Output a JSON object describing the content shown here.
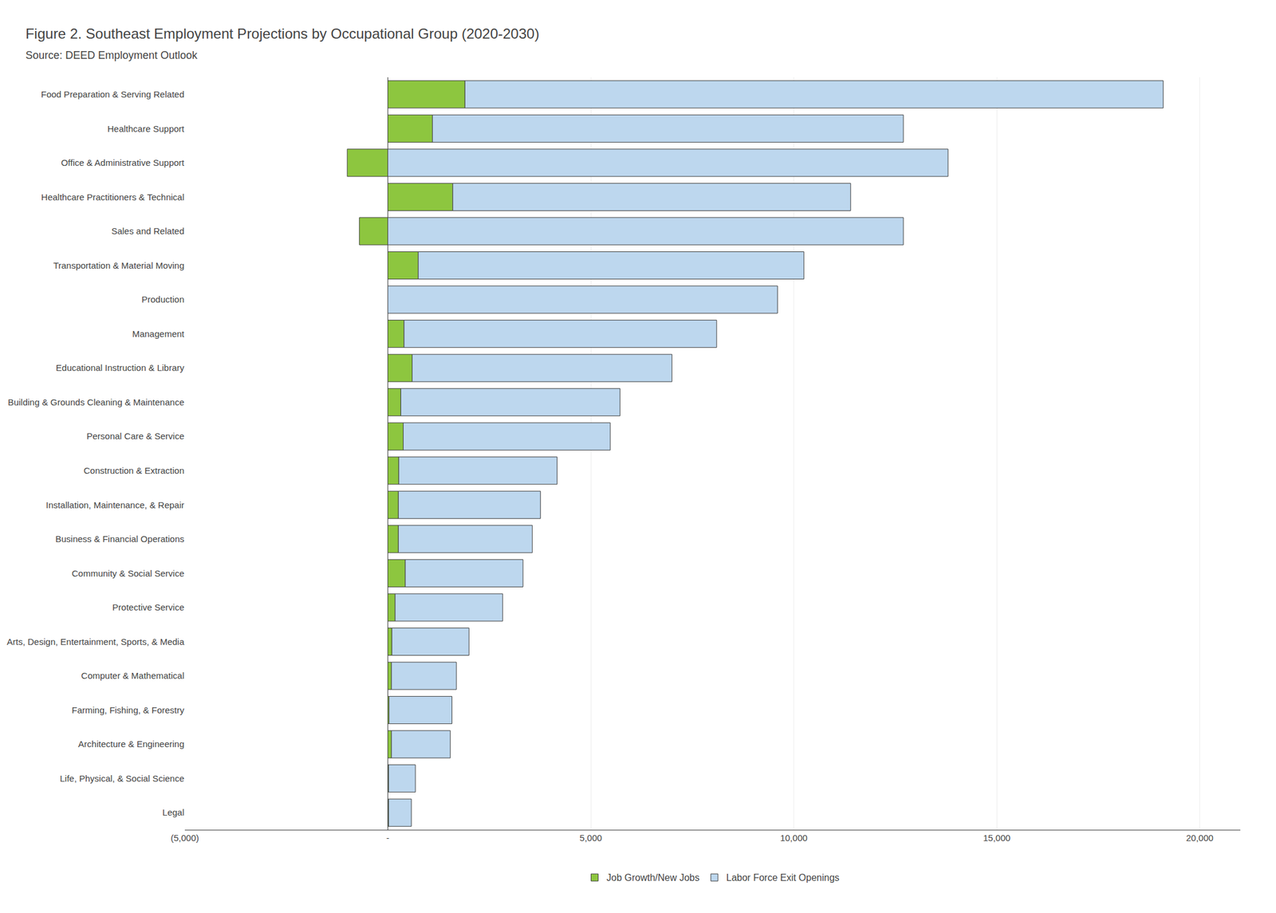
{
  "chart_data": {
    "type": "bar",
    "orientation": "horizontal",
    "stacked": true,
    "title": "Figure 2. Southeast Employment Projections by Occupational Group (2020-2030)",
    "subtitle": "Source: DEED Employment Outlook",
    "categories": [
      "Food Preparation & Serving Related",
      "Healthcare Support",
      "Office & Administrative Support",
      "Healthcare Practitioners & Technical",
      "Sales and Related",
      "Transportation & Material Moving",
      "Production",
      "Management",
      "Educational Instruction & Library",
      "Building & Grounds Cleaning & Maintenance",
      "Personal Care & Service",
      "Construction & Extraction",
      "Installation, Maintenance, & Repair",
      "Business & Financial Operations",
      "Community & Social Service",
      "Protective Service",
      "Arts, Design, Entertainment, Sports, & Media",
      "Computer & Mathematical",
      "Farming, Fishing, & Forestry",
      "Architecture & Engineering",
      "Life, Physical, & Social Science",
      "Legal"
    ],
    "series": [
      {
        "name": "Job Growth/New Jobs",
        "color": "#8DC63F",
        "values": [
          1900,
          1100,
          -1000,
          1600,
          -700,
          750,
          0,
          400,
          600,
          320,
          380,
          270,
          260,
          260,
          430,
          180,
          100,
          90,
          30,
          90,
          20,
          20
        ]
      },
      {
        "name": "Labor Force Exit Openings",
        "color": "#BDD7EE",
        "values": [
          17200,
          11600,
          13800,
          9800,
          12700,
          9500,
          9600,
          7700,
          6400,
          5400,
          5100,
          3900,
          3500,
          3300,
          2900,
          2650,
          1900,
          1600,
          1550,
          1450,
          660,
          560
        ]
      }
    ],
    "xlim": [
      -5000,
      21000
    ],
    "xticks": [
      {
        "value": -5000,
        "label": "(5,000)"
      },
      {
        "value": 0,
        "label": "-"
      },
      {
        "value": 5000,
        "label": "5,000"
      },
      {
        "value": 10000,
        "label": "10,000"
      },
      {
        "value": 15000,
        "label": "15,000"
      },
      {
        "value": 20000,
        "label": "20,000"
      }
    ],
    "grid": true,
    "legend": "bottom"
  }
}
